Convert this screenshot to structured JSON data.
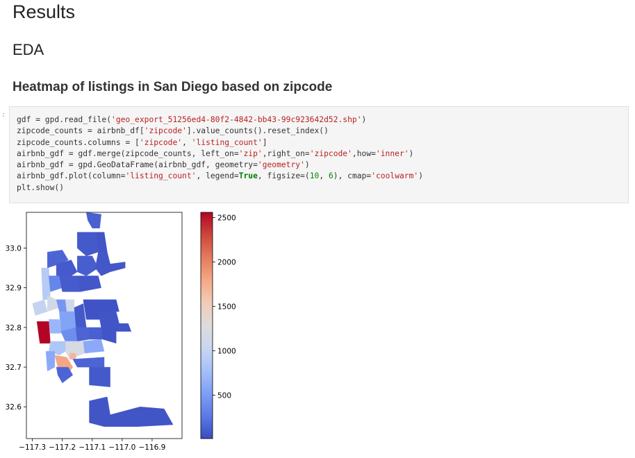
{
  "headings": {
    "results": "Results",
    "eda": "EDA",
    "heatmap_title": "Heatmap of listings in San Diego based on zipcode"
  },
  "prompt_marker": ":",
  "code_tokens": [
    [
      [
        "p",
        "gdf = gpd.read_file("
      ],
      [
        "s",
        "'geo_export_51256ed4-80f2-4842-bb43-99c923642d52.shp'"
      ],
      [
        "p",
        ")"
      ]
    ],
    [
      [
        "p",
        "zipcode_counts = airbnb_df["
      ],
      [
        "s",
        "'zipcode'"
      ],
      [
        "p",
        "].value_counts().reset_index()"
      ]
    ],
    [
      [
        "p",
        "zipcode_counts.columns = ["
      ],
      [
        "s",
        "'zipcode'"
      ],
      [
        "p",
        ", "
      ],
      [
        "s",
        "'listing_count'"
      ],
      [
        "p",
        "]"
      ]
    ],
    [
      [
        "p",
        "airbnb_gdf = gdf.merge(zipcode_counts, left_on="
      ],
      [
        "s",
        "'zip'"
      ],
      [
        "p",
        ",right_on="
      ],
      [
        "s",
        "'zipcode'"
      ],
      [
        "p",
        ",how="
      ],
      [
        "s",
        "'inner'"
      ],
      [
        "p",
        ")"
      ]
    ],
    [
      [
        "p",
        "airbnb_gdf = gpd.GeoDataFrame(airbnb_gdf, geometry="
      ],
      [
        "s",
        "'geometry'"
      ],
      [
        "p",
        ")"
      ]
    ],
    [
      [
        "p",
        "airbnb_gdf.plot(column="
      ],
      [
        "s",
        "'listing_count'"
      ],
      [
        "p",
        ", legend="
      ],
      [
        "k",
        "True"
      ],
      [
        "p",
        ", figsize=("
      ],
      [
        "n",
        "10"
      ],
      [
        "p",
        ", "
      ],
      [
        "n",
        "6"
      ],
      [
        "p",
        "), cmap="
      ],
      [
        "s",
        "'coolwarm'"
      ],
      [
        "p",
        ")"
      ]
    ],
    [
      [
        "p",
        "plt.show()"
      ]
    ]
  ],
  "chart_data": {
    "type": "heatmap",
    "subtype": "choropleth map",
    "color_column": "listing_count",
    "colormap": "coolwarm",
    "x_ticks": [
      "−117.3",
      "−117.2",
      "−117.1",
      "−117.0",
      "−116.9"
    ],
    "y_ticks": [
      "33.0",
      "32.9",
      "32.8",
      "32.7",
      "32.6"
    ],
    "x_tick_values": [
      -117.3,
      -117.2,
      -117.1,
      -117.0,
      -116.9
    ],
    "y_tick_values": [
      33.0,
      32.9,
      32.8,
      32.7,
      32.6
    ],
    "xlim": [
      -117.32,
      -116.8
    ],
    "ylim": [
      32.52,
      33.09
    ],
    "colorbar_ticks": [
      "500",
      "1000",
      "1500",
      "2000",
      "2500"
    ],
    "colorbar_tick_values": [
      500,
      1000,
      1500,
      2000,
      2500
    ],
    "colorbar_range": [
      10,
      2560
    ],
    "colorbar_colors": [
      "#3b4cc0",
      "#5b7ae5",
      "#7f9ff5",
      "#a5c0fa",
      "#c8d7ef",
      "#dddcdc",
      "#f1ccb8",
      "#f4a886",
      "#e57b5d",
      "#cc473c",
      "#b40426"
    ],
    "grid": false,
    "legend": "colorbar right",
    "regions": [
      {
        "value": 120,
        "coords": [
          [
            -117.12,
            33.09
          ],
          [
            -117.07,
            33.085
          ],
          [
            -117.075,
            33.05
          ],
          [
            -117.1,
            33.05
          ],
          [
            -117.115,
            33.07
          ]
        ]
      },
      {
        "value": 60,
        "coords": [
          [
            -117.09,
            33.04
          ],
          [
            -117.06,
            33.04
          ],
          [
            -117.05,
            32.99
          ],
          [
            -117.08,
            32.99
          ]
        ]
      },
      {
        "value": 80,
        "coords": [
          [
            -117.15,
            33.04
          ],
          [
            -117.09,
            33.04
          ],
          [
            -117.08,
            32.99
          ],
          [
            -117.12,
            32.98
          ],
          [
            -117.15,
            33.0
          ]
        ]
      },
      {
        "value": 150,
        "coords": [
          [
            -117.25,
            32.99
          ],
          [
            -117.2,
            32.995
          ],
          [
            -117.18,
            32.97
          ],
          [
            -117.21,
            32.96
          ],
          [
            -117.25,
            32.95
          ]
        ]
      },
      {
        "value": 90,
        "coords": [
          [
            -117.22,
            32.96
          ],
          [
            -117.17,
            32.97
          ],
          [
            -117.15,
            32.94
          ],
          [
            -117.19,
            32.92
          ],
          [
            -117.22,
            32.93
          ]
        ]
      },
      {
        "value": 110,
        "coords": [
          [
            -117.15,
            32.98
          ],
          [
            -117.1,
            32.98
          ],
          [
            -117.08,
            32.95
          ],
          [
            -117.12,
            32.93
          ],
          [
            -117.15,
            32.94
          ]
        ]
      },
      {
        "value": 70,
        "coords": [
          [
            -117.08,
            32.99
          ],
          [
            -117.05,
            32.99
          ],
          [
            -117.04,
            32.96
          ],
          [
            -116.99,
            32.965
          ],
          [
            -116.99,
            32.95
          ],
          [
            -117.04,
            32.94
          ],
          [
            -117.07,
            32.93
          ],
          [
            -117.09,
            32.95
          ]
        ]
      },
      {
        "value": 900,
        "coords": [
          [
            -117.27,
            32.95
          ],
          [
            -117.245,
            32.95
          ],
          [
            -117.24,
            32.87
          ],
          [
            -117.265,
            32.87
          ]
        ]
      },
      {
        "value": 350,
        "coords": [
          [
            -117.245,
            32.93
          ],
          [
            -117.21,
            32.93
          ],
          [
            -117.2,
            32.9
          ],
          [
            -117.24,
            32.89
          ]
        ]
      },
      {
        "value": 100,
        "coords": [
          [
            -117.21,
            32.93
          ],
          [
            -117.15,
            32.93
          ],
          [
            -117.14,
            32.89
          ],
          [
            -117.2,
            32.89
          ]
        ]
      },
      {
        "value": 70,
        "coords": [
          [
            -117.15,
            32.93
          ],
          [
            -117.08,
            32.93
          ],
          [
            -117.07,
            32.9
          ],
          [
            -117.14,
            32.89
          ]
        ]
      },
      {
        "value": 1150,
        "coords": [
          [
            -117.25,
            32.88
          ],
          [
            -117.22,
            32.87
          ],
          [
            -117.21,
            32.85
          ],
          [
            -117.25,
            32.84
          ]
        ]
      },
      {
        "value": 1000,
        "coords": [
          [
            -117.3,
            32.86
          ],
          [
            -117.26,
            32.87
          ],
          [
            -117.25,
            32.84
          ],
          [
            -117.29,
            32.83
          ]
        ]
      },
      {
        "value": 450,
        "coords": [
          [
            -117.22,
            32.87
          ],
          [
            -117.19,
            32.87
          ],
          [
            -117.185,
            32.84
          ],
          [
            -117.21,
            32.84
          ]
        ]
      },
      {
        "value": 1100,
        "coords": [
          [
            -117.19,
            32.87
          ],
          [
            -117.16,
            32.87
          ],
          [
            -117.16,
            32.84
          ],
          [
            -117.185,
            32.84
          ]
        ]
      },
      {
        "value": 80,
        "coords": [
          [
            -117.16,
            32.85
          ],
          [
            -117.13,
            32.86
          ],
          [
            -117.12,
            32.8
          ],
          [
            -117.155,
            32.8
          ]
        ]
      },
      {
        "value": 50,
        "coords": [
          [
            -117.13,
            32.87
          ],
          [
            -117.02,
            32.87
          ],
          [
            -117.01,
            32.84
          ],
          [
            -117.06,
            32.84
          ],
          [
            -117.07,
            32.82
          ],
          [
            -117.12,
            32.82
          ]
        ]
      },
      {
        "value": 60,
        "coords": [
          [
            -117.08,
            32.84
          ],
          [
            -117.02,
            32.84
          ],
          [
            -117.01,
            32.81
          ],
          [
            -116.98,
            32.81
          ],
          [
            -116.97,
            32.79
          ],
          [
            -117.02,
            32.79
          ],
          [
            -117.07,
            32.8
          ]
        ]
      },
      {
        "value": 2560,
        "coords": [
          [
            -117.285,
            32.815
          ],
          [
            -117.245,
            32.815
          ],
          [
            -117.24,
            32.76
          ],
          [
            -117.275,
            32.76
          ]
        ]
      },
      {
        "value": 700,
        "coords": [
          [
            -117.245,
            32.82
          ],
          [
            -117.21,
            32.82
          ],
          [
            -117.205,
            32.785
          ],
          [
            -117.24,
            32.785
          ]
        ]
      },
      {
        "value": 550,
        "coords": [
          [
            -117.21,
            32.84
          ],
          [
            -117.16,
            32.84
          ],
          [
            -117.155,
            32.8
          ],
          [
            -117.205,
            32.79
          ]
        ]
      },
      {
        "value": 400,
        "coords": [
          [
            -117.205,
            32.79
          ],
          [
            -117.155,
            32.8
          ],
          [
            -117.15,
            32.765
          ],
          [
            -117.19,
            32.765
          ]
        ]
      },
      {
        "value": 150,
        "coords": [
          [
            -117.155,
            32.8
          ],
          [
            -117.11,
            32.8
          ],
          [
            -117.11,
            32.77
          ],
          [
            -117.15,
            32.765
          ]
        ]
      },
      {
        "value": 120,
        "coords": [
          [
            -117.11,
            32.8
          ],
          [
            -117.07,
            32.8
          ],
          [
            -117.065,
            32.77
          ],
          [
            -117.11,
            32.77
          ]
        ]
      },
      {
        "value": 60,
        "coords": [
          [
            -117.07,
            32.8
          ],
          [
            -117.02,
            32.79
          ],
          [
            -117.02,
            32.76
          ],
          [
            -117.065,
            32.77
          ]
        ]
      },
      {
        "value": 1200,
        "coords": [
          [
            -117.19,
            32.765
          ],
          [
            -117.13,
            32.765
          ],
          [
            -117.125,
            32.735
          ],
          [
            -117.175,
            32.72
          ],
          [
            -117.19,
            32.74
          ]
        ]
      },
      {
        "value": 850,
        "coords": [
          [
            -117.24,
            32.765
          ],
          [
            -117.19,
            32.765
          ],
          [
            -117.19,
            32.74
          ],
          [
            -117.21,
            32.73
          ],
          [
            -117.245,
            32.74
          ]
        ]
      },
      {
        "value": 600,
        "coords": [
          [
            -117.255,
            32.74
          ],
          [
            -117.225,
            32.74
          ],
          [
            -117.225,
            32.7
          ],
          [
            -117.25,
            32.69
          ]
        ]
      },
      {
        "value": 1800,
        "coords": [
          [
            -117.225,
            32.73
          ],
          [
            -117.185,
            32.725
          ],
          [
            -117.165,
            32.7
          ],
          [
            -117.18,
            32.685
          ],
          [
            -117.215,
            32.7
          ]
        ]
      },
      {
        "value": 1700,
        "coords": [
          [
            -117.175,
            32.735
          ],
          [
            -117.155,
            32.735
          ],
          [
            -117.155,
            32.72
          ],
          [
            -117.175,
            32.72
          ]
        ]
      },
      {
        "value": 600,
        "coords": [
          [
            -117.13,
            32.765
          ],
          [
            -117.07,
            32.77
          ],
          [
            -117.06,
            32.74
          ],
          [
            -117.125,
            32.735
          ]
        ]
      },
      {
        "value": 150,
        "coords": [
          [
            -117.165,
            32.72
          ],
          [
            -117.06,
            32.725
          ],
          [
            -117.06,
            32.7
          ],
          [
            -117.15,
            32.7
          ]
        ]
      },
      {
        "value": 80,
        "coords": [
          [
            -117.11,
            32.7
          ],
          [
            -117.04,
            32.7
          ],
          [
            -117.04,
            32.65
          ],
          [
            -117.11,
            32.655
          ]
        ]
      },
      {
        "value": 150,
        "coords": [
          [
            -117.22,
            32.7
          ],
          [
            -117.18,
            32.7
          ],
          [
            -117.165,
            32.68
          ],
          [
            -117.2,
            32.66
          ],
          [
            -117.215,
            32.68
          ]
        ]
      },
      {
        "value": 60,
        "coords": [
          [
            -117.11,
            32.615
          ],
          [
            -117.05,
            32.625
          ],
          [
            -117.04,
            32.58
          ],
          [
            -116.94,
            32.6
          ],
          [
            -116.86,
            32.595
          ],
          [
            -116.83,
            32.555
          ],
          [
            -116.95,
            32.55
          ],
          [
            -117.06,
            32.55
          ],
          [
            -117.11,
            32.56
          ]
        ]
      }
    ]
  }
}
